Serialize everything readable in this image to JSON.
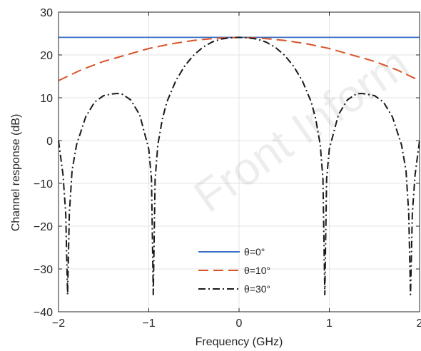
{
  "chart_data": {
    "type": "line",
    "xlabel": "Frequency (GHz)",
    "ylabel": "Channel response (dB)",
    "xlim": [
      -2,
      2
    ],
    "ylim": [
      -40,
      30
    ],
    "xticks": [
      -2,
      -1,
      0,
      1,
      2
    ],
    "yticks": [
      -40,
      -30,
      -20,
      -10,
      0,
      10,
      20,
      30
    ],
    "xtick_labels": [
      "−2",
      "−1",
      "0",
      "1",
      "2"
    ],
    "ytick_labels": [
      "−40",
      "−30",
      "−20",
      "−10",
      "0",
      "10",
      "20",
      "30"
    ],
    "grid": true,
    "legend_position": "bottom-center",
    "series": [
      {
        "name": "θ=0°",
        "color": "#3a6fc4",
        "style": "solid",
        "x": [
          -2,
          -1.5,
          -1,
          -0.5,
          0,
          0.5,
          1,
          1.5,
          2
        ],
        "y": [
          24.1,
          24.1,
          24.1,
          24.1,
          24.1,
          24.1,
          24.1,
          24.1,
          24.1
        ]
      },
      {
        "name": "θ=10°",
        "color": "#d9532a",
        "style": "dashed",
        "x": [
          -2,
          -1.75,
          -1.5,
          -1.25,
          -1,
          -0.75,
          -0.5,
          -0.25,
          0,
          0.25,
          0.5,
          0.75,
          1,
          1.25,
          1.5,
          1.75,
          2
        ],
        "y": [
          14.0,
          16.5,
          18.5,
          20.0,
          21.5,
          22.6,
          23.4,
          23.9,
          24.1,
          23.9,
          23.4,
          22.6,
          21.5,
          20.0,
          18.5,
          16.5,
          14.0
        ]
      },
      {
        "name": "θ=30°",
        "color": "#1a1a1a",
        "style": "dashdot",
        "x": [
          -2,
          -1.95,
          -1.92,
          -1.9,
          -1.88,
          -1.85,
          -1.8,
          -1.7,
          -1.6,
          -1.5,
          -1.4,
          -1.35,
          -1.3,
          -1.2,
          -1.1,
          -1.0,
          -0.97,
          -0.95,
          -0.93,
          -0.9,
          -0.85,
          -0.8,
          -0.7,
          -0.6,
          -0.5,
          -0.4,
          -0.3,
          -0.2,
          -0.1,
          0,
          0.1,
          0.2,
          0.3,
          0.4,
          0.5,
          0.6,
          0.7,
          0.8,
          0.85,
          0.9,
          0.93,
          0.95,
          0.97,
          1.0,
          1.1,
          1.2,
          1.3,
          1.35,
          1.4,
          1.5,
          1.6,
          1.7,
          1.8,
          1.85,
          1.88,
          1.9,
          1.92,
          1.95,
          2
        ],
        "y": [
          0,
          -8,
          -17,
          -36,
          -17,
          -7,
          -1,
          5.5,
          9,
          10.5,
          10.9,
          11,
          10.9,
          9.5,
          6,
          -2,
          -9,
          -36,
          -9,
          -1,
          5,
          9,
          14,
          17.5,
          20,
          21.8,
          23,
          23.7,
          24,
          24.1,
          24,
          23.7,
          23,
          21.8,
          20,
          17.5,
          14,
          9,
          5,
          -1,
          -9,
          -36,
          -9,
          -2,
          6,
          9.5,
          10.9,
          11,
          10.9,
          10.5,
          9,
          5.5,
          -1,
          -7,
          -17,
          -36,
          -17,
          -8,
          0
        ]
      }
    ],
    "watermark": "Front Inform"
  }
}
